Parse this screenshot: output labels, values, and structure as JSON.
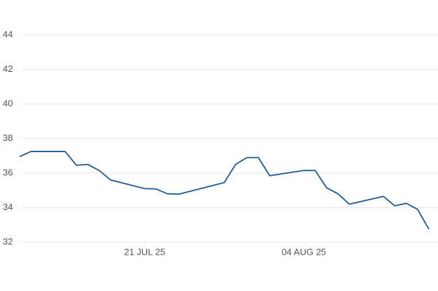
{
  "chart_data": {
    "type": "line",
    "x": [
      "2025-07-10",
      "2025-07-11",
      "2025-07-14",
      "2025-07-15",
      "2025-07-16",
      "2025-07-17",
      "2025-07-18",
      "2025-07-21",
      "2025-07-22",
      "2025-07-23",
      "2025-07-24",
      "2025-07-28",
      "2025-07-29",
      "2025-07-30",
      "2025-07-31",
      "2025-08-01",
      "2025-08-04",
      "2025-08-05",
      "2025-08-06",
      "2025-08-07",
      "2025-08-08",
      "2025-08-11",
      "2025-08-12",
      "2025-08-13",
      "2025-08-14",
      "2025-08-15"
    ],
    "series": [
      {
        "color": "#1f5a96",
        "values": [
          36.95,
          37.25,
          37.25,
          36.45,
          36.5,
          36.15,
          35.6,
          35.1,
          35.08,
          34.8,
          34.78,
          35.45,
          36.5,
          36.9,
          36.9,
          35.85,
          36.15,
          36.15,
          35.15,
          34.8,
          34.2,
          34.65,
          34.1,
          34.25,
          33.9,
          32.75
        ]
      }
    ],
    "xlim": [
      "2025-07-10",
      "2025-08-15"
    ],
    "xticks": [
      {
        "value": "2025-07-21",
        "label": "21 JUL 25"
      },
      {
        "value": "2025-08-04",
        "label": "04 AUG 25"
      }
    ],
    "ylim": [
      32,
      44
    ],
    "yticks": [
      32,
      34,
      36,
      38,
      40,
      42,
      44
    ],
    "grid": true
  }
}
